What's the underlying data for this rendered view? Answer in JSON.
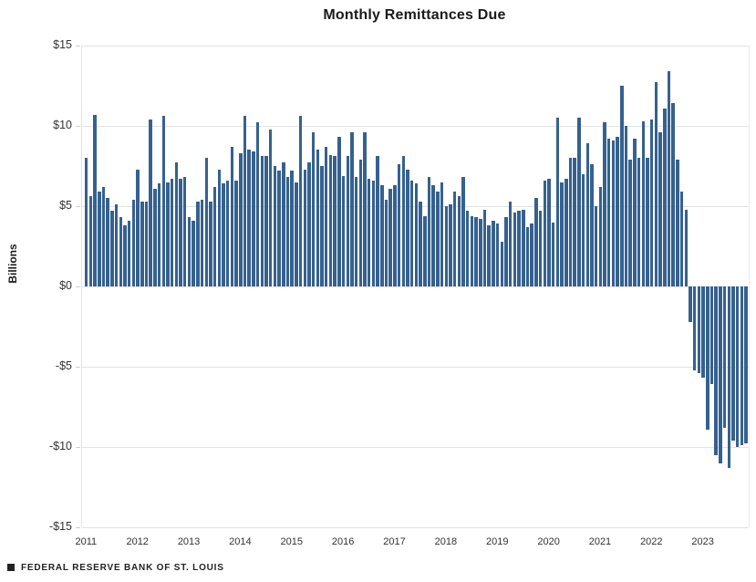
{
  "chart": {
    "title": "Monthly Remittances Due",
    "ylabel": "Billions",
    "source": "FEDERAL RESERVE BANK OF ST. LOUIS"
  },
  "chart_data": {
    "type": "bar",
    "title": "Monthly Remittances Due",
    "xlabel": "",
    "ylabel": "Billions",
    "unit": "USD billions",
    "frequency": "monthly",
    "x_start": "2011-01",
    "x_end": "2023-11",
    "ylim": [
      -15,
      15
    ],
    "grid": "horizontal",
    "legend": "none",
    "bar_color": "#35618F",
    "y_tick_labels": [
      "$15",
      "$10",
      "$5",
      "$0",
      "-$5",
      "-$10",
      "-$15"
    ],
    "y_tick_values": [
      15,
      10,
      5,
      0,
      -5,
      -10,
      -15
    ],
    "year_labels": [
      "2011",
      "2012",
      "2013",
      "2014",
      "2015",
      "2016",
      "2017",
      "2018",
      "2019",
      "2020",
      "2021",
      "2022",
      "2023"
    ],
    "values_by_year": {
      "2011": [
        8.0,
        5.6,
        10.7,
        5.9,
        6.2,
        5.5,
        4.7,
        5.1,
        4.3,
        3.8,
        4.1,
        5.4
      ],
      "2012": [
        7.3,
        5.3,
        5.3,
        10.4,
        6.1,
        6.4,
        10.6,
        6.5,
        6.7,
        7.7,
        6.7,
        6.8
      ],
      "2013": [
        4.3,
        4.1,
        5.3,
        5.4,
        8.0,
        5.3,
        6.2,
        7.3,
        6.4,
        6.6,
        8.7,
        6.6
      ],
      "2014": [
        8.3,
        10.6,
        8.5,
        8.4,
        10.2,
        8.1,
        8.1,
        9.8,
        7.5,
        7.2,
        7.7,
        6.8
      ],
      "2015": [
        7.2,
        6.5,
        10.6,
        7.3,
        7.7,
        9.6,
        8.5,
        7.5,
        8.7,
        8.2,
        8.1,
        9.3
      ],
      "2016": [
        6.9,
        8.1,
        9.6,
        6.8,
        7.9,
        9.6,
        6.7,
        6.6,
        8.1,
        6.3,
        5.4,
        6.1
      ],
      "2017": [
        6.3,
        7.6,
        8.1,
        7.3,
        6.6,
        6.4,
        5.3,
        4.4,
        6.8,
        6.3,
        5.9,
        6.5
      ],
      "2018": [
        5.0,
        5.1,
        5.9,
        5.6,
        6.8,
        4.7,
        4.4,
        4.3,
        4.2,
        4.8,
        3.8,
        4.1
      ],
      "2019": [
        3.9,
        2.8,
        4.3,
        5.3,
        4.6,
        4.7,
        4.8,
        3.7,
        3.9,
        5.5,
        4.7,
        6.6
      ],
      "2020": [
        6.7,
        4.0,
        10.5,
        6.5,
        6.7,
        8.0,
        8.0,
        10.5,
        7.0,
        8.9,
        7.6,
        5.0
      ],
      "2021": [
        6.2,
        10.2,
        9.2,
        9.1,
        9.3,
        12.5,
        10.0,
        7.9,
        9.2,
        8.0,
        10.3,
        8.0
      ],
      "2022": [
        10.4,
        12.7,
        9.6,
        11.1,
        13.4,
        11.4,
        7.9,
        5.9,
        4.8,
        -2.2,
        -5.2,
        -5.4
      ],
      "2023": [
        -5.7,
        -8.9,
        -6.1,
        -10.5,
        -11.0,
        -8.8,
        -11.3,
        -9.6,
        -10.0,
        -9.9,
        -9.8
      ]
    }
  }
}
